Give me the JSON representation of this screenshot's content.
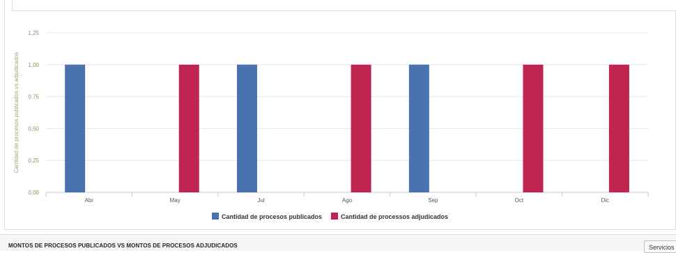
{
  "chart_data": {
    "type": "bar",
    "categories": [
      "Abr",
      "May",
      "Jul",
      "Ago",
      "Sep",
      "Oct",
      "Dic"
    ],
    "series": [
      {
        "name": "Cantidad de procesos publicados",
        "color": "#4a72b0",
        "values": [
          1,
          0,
          1,
          0,
          1,
          0,
          0
        ]
      },
      {
        "name": "Cantidad de processos adjudicados",
        "color": "#c02450",
        "values": [
          0,
          1,
          0,
          1,
          0,
          1,
          1
        ]
      }
    ],
    "ylabel": "Cantidad de procesos publicados vs adjudicados",
    "ylim": [
      0,
      1.25
    ],
    "yticks": [
      "0,00",
      "0,25",
      "0,50",
      "0,75",
      "1,00",
      "1,25"
    ],
    "grid": true,
    "legend_position": "bottom-center"
  },
  "section": {
    "title": "MONTOS DE PROCESOS PUBLICADOS VS MONTOS DE PROCESOS ADJUDICADOS",
    "services_label": "Servicios"
  }
}
